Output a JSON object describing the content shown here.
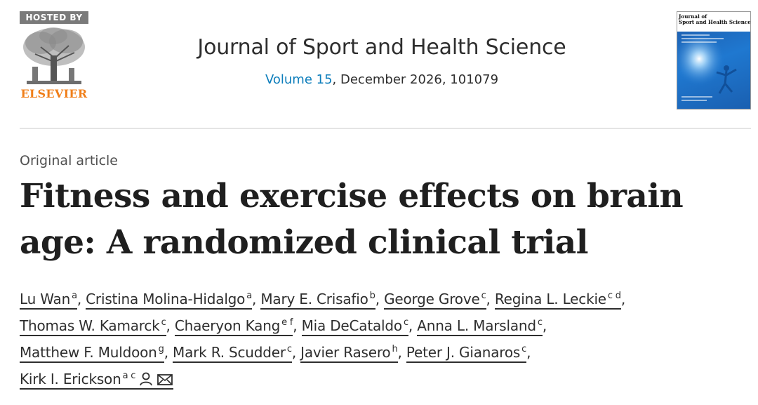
{
  "publisher": {
    "hosted_by": "HOSTED BY",
    "name": "ELSEVIER"
  },
  "journal": {
    "title": "Journal of Sport and Health Science",
    "volume_link": "Volume 15",
    "issue_rest": ", December 2026, 101079",
    "cover_title_line1": "Journal of",
    "cover_title_line2": "Sport and Health Science"
  },
  "article": {
    "type": "Original article",
    "title": "Fitness and exercise effects on brain age: A randomized clinical trial"
  },
  "authors": [
    {
      "name": "Lu Wan",
      "aff": "a",
      "sep": ", "
    },
    {
      "name": "Cristina Molina-Hidalgo",
      "aff": "a",
      "sep": ", "
    },
    {
      "name": "Mary E. Crisafio",
      "aff": "b",
      "sep": ", "
    },
    {
      "name": "George Grove",
      "aff": "c",
      "sep": ", "
    },
    {
      "name": "Regina L. Leckie",
      "aff": "c d",
      "sep": ","
    },
    {
      "name": "Thomas W. Kamarck",
      "aff": "c",
      "sep": ", "
    },
    {
      "name": "Chaeryon Kang",
      "aff": "e f",
      "sep": ", "
    },
    {
      "name": "Mia DeCataldo",
      "aff": "c",
      "sep": ", "
    },
    {
      "name": "Anna L. Marsland",
      "aff": "c",
      "sep": ","
    },
    {
      "name": "Matthew F. Muldoon",
      "aff": "g",
      "sep": ", "
    },
    {
      "name": "Mark R. Scudder",
      "aff": "c",
      "sep": ", "
    },
    {
      "name": "Javier Rasero",
      "aff": "h",
      "sep": ", "
    },
    {
      "name": "Peter J. Gianaros",
      "aff": "c",
      "sep": ","
    },
    {
      "name": "Kirk I. Erickson",
      "aff": "a c",
      "sep": "",
      "icons": [
        "person-icon",
        "envelope-icon"
      ]
    }
  ],
  "colors": {
    "link": "#0c7dbb",
    "elsevier_orange": "#f07f1a",
    "cover_blue": "#1f78d0"
  }
}
